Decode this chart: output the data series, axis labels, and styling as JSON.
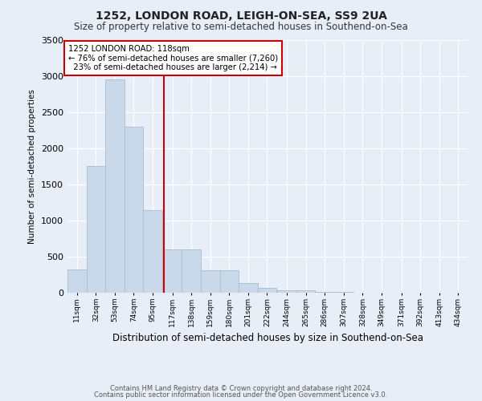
{
  "title": "1252, LONDON ROAD, LEIGH-ON-SEA, SS9 2UA",
  "subtitle": "Size of property relative to semi-detached houses in Southend-on-Sea",
  "xlabel": "Distribution of semi-detached houses by size in Southend-on-Sea",
  "ylabel": "Number of semi-detached properties",
  "bar_color": "#c9d9ea",
  "bar_edgecolor": "#a8bdd0",
  "background_color": "#e8eef8",
  "grid_color": "#ffffff",
  "annotation_line_color": "#cc0000",
  "annotation_box_color": "#cc0000",
  "property_size": 118,
  "property_label": "1252 LONDON ROAD: 118sqm",
  "pct_smaller": 76,
  "n_smaller": 7260,
  "pct_larger": 23,
  "n_larger": 2214,
  "bin_labels": [
    "11sqm",
    "32sqm",
    "53sqm",
    "74sqm",
    "95sqm",
    "117sqm",
    "138sqm",
    "159sqm",
    "180sqm",
    "201sqm",
    "222sqm",
    "244sqm",
    "265sqm",
    "286sqm",
    "307sqm",
    "328sqm",
    "349sqm",
    "371sqm",
    "392sqm",
    "413sqm",
    "434sqm"
  ],
  "bin_edges": [
    11,
    32,
    53,
    74,
    95,
    117,
    138,
    159,
    180,
    201,
    222,
    244,
    265,
    286,
    307,
    328,
    349,
    371,
    392,
    413,
    434
  ],
  "bar_heights": [
    320,
    1750,
    2950,
    2300,
    1150,
    600,
    600,
    310,
    310,
    130,
    65,
    35,
    35,
    12,
    8,
    4,
    4,
    1,
    1,
    0,
    0
  ],
  "ylim": [
    0,
    3500
  ],
  "yticks": [
    0,
    500,
    1000,
    1500,
    2000,
    2500,
    3000,
    3500
  ],
  "footer1": "Contains HM Land Registry data © Crown copyright and database right 2024.",
  "footer2": "Contains public sector information licensed under the Open Government Licence v3.0."
}
